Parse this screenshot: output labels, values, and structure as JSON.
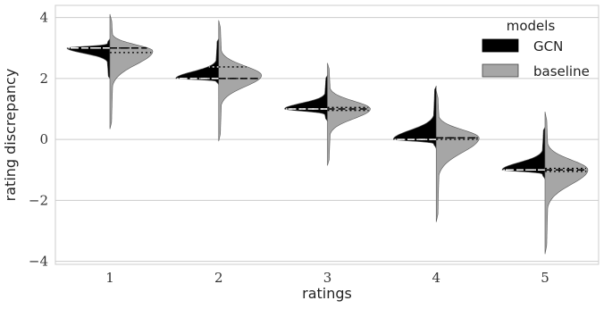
{
  "chart_data": {
    "type": "split-violin",
    "xlabel": "ratings",
    "ylabel": "rating discrepancy",
    "categories": [
      "1",
      "2",
      "3",
      "4",
      "5"
    ],
    "ylim": [
      -4.1,
      4.4
    ],
    "yticks": [
      4,
      2,
      0,
      -2,
      -4
    ],
    "ytick_labels": [
      "4",
      "2",
      "0",
      "−2",
      "−4"
    ],
    "grid": true,
    "legend": {
      "title": "models",
      "position": "top-right",
      "entries": [
        "GCN",
        "baseline"
      ]
    },
    "series": [
      {
        "name": "GCN",
        "color": "#000000",
        "side": "left",
        "violins": [
          {
            "category": "1",
            "min": 2.0,
            "max": 3.3,
            "mode": 3.0,
            "q1": 3.0,
            "median": 3.0,
            "q3": 3.0
          },
          {
            "category": "2",
            "min": 1.8,
            "max": 3.3,
            "mode": 2.0,
            "q1": 2.0,
            "median": 2.0,
            "q3": 2.38
          },
          {
            "category": "3",
            "min": 0.6,
            "max": 2.1,
            "mode": 1.0,
            "q1": 1.0,
            "median": 1.0,
            "q3": 1.0
          },
          {
            "category": "4",
            "min": -0.3,
            "max": 1.75,
            "mode": 0.0,
            "q1": 0.0,
            "median": 0.0,
            "q3": 0.0
          },
          {
            "category": "5",
            "min": -1.3,
            "max": 0.4,
            "mode": -1.0,
            "q1": -1.0,
            "median": -1.0,
            "q3": -1.0
          }
        ]
      },
      {
        "name": "baseline",
        "color": "#a6a6a6",
        "side": "right",
        "violins": [
          {
            "category": "1",
            "min": 0.35,
            "max": 4.1,
            "mode": 2.9,
            "q1": 2.85,
            "median": 3.0,
            "q3": 3.0
          },
          {
            "category": "2",
            "min": -0.05,
            "max": 3.9,
            "mode": 2.1,
            "q1": 2.0,
            "median": 2.0,
            "q3": 2.38
          },
          {
            "category": "3",
            "min": -0.85,
            "max": 2.5,
            "mode": 1.0,
            "q1": 0.95,
            "median": 1.0,
            "q3": 1.05
          },
          {
            "category": "4",
            "min": -2.7,
            "max": 1.6,
            "mode": 0.05,
            "q1": 0.0,
            "median": 0.05,
            "q3": 0.05
          },
          {
            "category": "5",
            "min": -3.75,
            "max": 0.9,
            "mode": -1.0,
            "q1": -1.05,
            "median": -1.0,
            "q3": -0.95
          }
        ]
      }
    ]
  }
}
